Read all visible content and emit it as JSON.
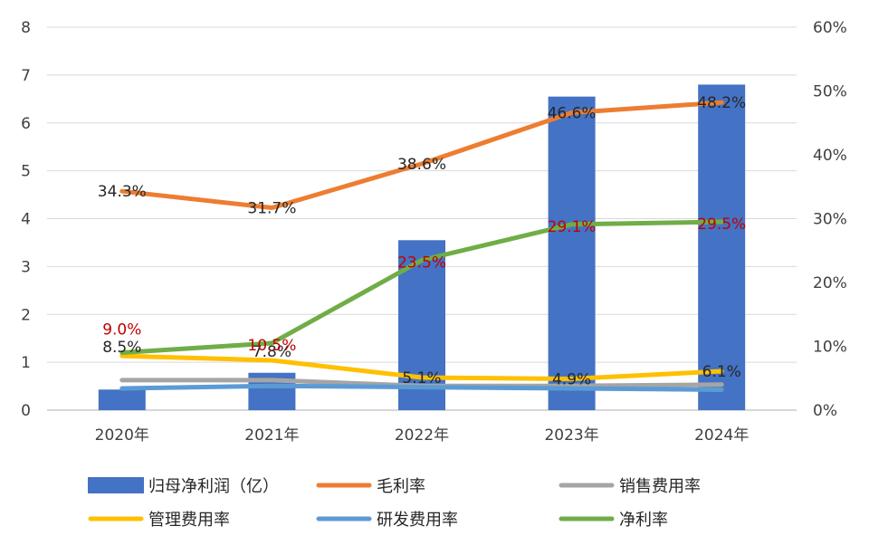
{
  "chart_data": {
    "type": "bar",
    "categories": [
      "2020年",
      "2021年",
      "2022年",
      "2023年",
      "2024年"
    ],
    "y_left": {
      "ticks": [
        "0",
        "1",
        "2",
        "3",
        "4",
        "5",
        "6",
        "7",
        "8"
      ],
      "range": [
        0,
        8
      ]
    },
    "y_right": {
      "ticks": [
        "0%",
        "10%",
        "20%",
        "30%",
        "40%",
        "50%",
        "60%"
      ],
      "range": [
        0,
        60
      ]
    },
    "grid": true,
    "legend_position": "bottom",
    "series": [
      {
        "key": "net_profit",
        "name": "归母净利润（亿）",
        "type": "bar",
        "axis": "left",
        "color": "#4472C4",
        "values": [
          0.43,
          0.78,
          3.55,
          6.55,
          6.8
        ],
        "labels": null
      },
      {
        "key": "gross_margin",
        "name": "毛利率",
        "type": "line",
        "axis": "right",
        "color": "#ED7D31",
        "values": [
          34.3,
          31.7,
          38.6,
          46.6,
          48.2
        ],
        "labels": [
          "34.3%",
          "31.7%",
          "38.6%",
          "46.6%",
          "48.2%"
        ],
        "label_color": "#262626"
      },
      {
        "key": "sales_expense",
        "name": "销售费用率",
        "type": "line",
        "axis": "right",
        "color": "#A5A5A5",
        "values": [
          4.7,
          4.7,
          3.8,
          3.8,
          4.0
        ],
        "labels": null
      },
      {
        "key": "admin_expense",
        "name": "管理费用率",
        "type": "line",
        "axis": "right",
        "color": "#FFC000",
        "values": [
          8.5,
          7.8,
          5.1,
          4.9,
          6.1
        ],
        "labels": [
          "8.5%",
          "7.8%",
          "5.1%",
          "4.9%",
          "6.1%"
        ],
        "label_color": "#262626"
      },
      {
        "key": "rnd_expense",
        "name": "研发费用率",
        "type": "line",
        "axis": "right",
        "color": "#5B9BD5",
        "values": [
          3.4,
          3.8,
          3.6,
          3.4,
          3.2
        ],
        "labels": null
      },
      {
        "key": "net_margin",
        "name": "净利率",
        "type": "line",
        "axis": "right",
        "color": "#70AD47",
        "values": [
          9.0,
          10.5,
          23.5,
          29.1,
          29.5
        ],
        "labels": [
          "9.0%",
          "10.5%",
          "23.5%",
          "29.1%",
          "29.5%"
        ],
        "label_color": "#C00000"
      }
    ],
    "legend_rows": [
      [
        "net_profit",
        "gross_margin",
        "sales_expense"
      ],
      [
        "admin_expense",
        "rnd_expense",
        "net_margin"
      ]
    ]
  }
}
